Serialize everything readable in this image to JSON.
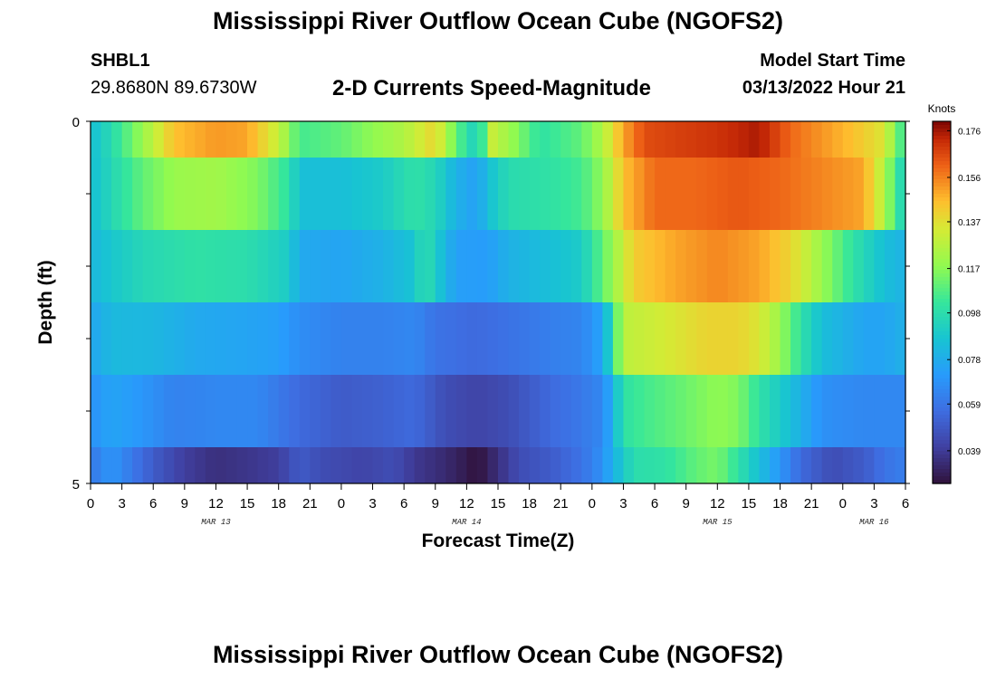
{
  "header": {
    "title": "Mississippi River Outflow Ocean Cube (NGOFS2)",
    "station_id": "SHBL1",
    "station_location": "29.8680N  89.6730W",
    "subtitle": "2-D Currents Speed-Magnitude",
    "start_label": "Model Start Time",
    "start_value": "03/13/2022 Hour 21"
  },
  "footer": {
    "title": "Mississippi River Outflow Ocean Cube (NGOFS2)"
  },
  "chart_data": {
    "type": "heatmap",
    "title": "2-D Currents Speed-Magnitude",
    "xlabel": "Forecast Time(Z)",
    "ylabel": "Depth (ft)",
    "units": "Knots",
    "ylim": [
      0,
      5
    ],
    "y_tick_labels": [
      "0",
      "5"
    ],
    "x_start_hour": 0,
    "x_end_hour": 78,
    "x_tick_hours": [
      0,
      3,
      6,
      9,
      12,
      15,
      18,
      21,
      24,
      27,
      30,
      33,
      36,
      39,
      42,
      45,
      48,
      51,
      54,
      57,
      60,
      63,
      66,
      69,
      72,
      75,
      78
    ],
    "x_tick_labels": [
      "0",
      "3",
      "6",
      "9",
      "12",
      "15",
      "18",
      "21",
      "0",
      "3",
      "6",
      "9",
      "12",
      "15",
      "18",
      "21",
      "0",
      "3",
      "6",
      "9",
      "12",
      "15",
      "18",
      "21",
      "0",
      "3",
      "6"
    ],
    "date_labels": [
      {
        "text": "MAR 13",
        "hour": 12
      },
      {
        "text": "MAR 14",
        "hour": 36
      },
      {
        "text": "MAR 15",
        "hour": 60
      },
      {
        "text": "MAR 16",
        "hour": 75
      }
    ],
    "colorbar_ticks": [
      0.176,
      0.156,
      0.137,
      0.117,
      0.098,
      0.078,
      0.059,
      0.039
    ],
    "colorbar_tick_labels": [
      "0.176",
      "0.156",
      "0.137",
      "0.117",
      "0.098",
      "0.078",
      "0.059",
      "0.039"
    ],
    "color_min": 0.025,
    "color_max": 0.18,
    "layers": [
      {
        "top": 0.0,
        "bottom": 0.5,
        "keys": [
          [
            0,
            0.085
          ],
          [
            2,
            0.097
          ],
          [
            5,
            0.12
          ],
          [
            8,
            0.145
          ],
          [
            12,
            0.152
          ],
          [
            15,
            0.15
          ],
          [
            18,
            0.13
          ],
          [
            20,
            0.105
          ],
          [
            24,
            0.11
          ],
          [
            27,
            0.118
          ],
          [
            30,
            0.125
          ],
          [
            33,
            0.14
          ],
          [
            35,
            0.11
          ],
          [
            37,
            0.09
          ],
          [
            38.5,
            0.13
          ],
          [
            41,
            0.115
          ],
          [
            43,
            0.1
          ],
          [
            47,
            0.11
          ],
          [
            49,
            0.125
          ],
          [
            51,
            0.15
          ],
          [
            53,
            0.165
          ],
          [
            57,
            0.168
          ],
          [
            60,
            0.17
          ],
          [
            64,
            0.175
          ],
          [
            67,
            0.16
          ],
          [
            73,
            0.145
          ],
          [
            76,
            0.135
          ],
          [
            77,
            0.115
          ],
          [
            78,
            0.1
          ]
        ]
      },
      {
        "top": 0.5,
        "bottom": 1.5,
        "keys": [
          [
            0,
            0.085
          ],
          [
            2,
            0.095
          ],
          [
            5,
            0.11
          ],
          [
            8,
            0.12
          ],
          [
            12,
            0.122
          ],
          [
            16,
            0.115
          ],
          [
            19,
            0.1
          ],
          [
            20,
            0.085
          ],
          [
            24,
            0.085
          ],
          [
            28,
            0.09
          ],
          [
            31,
            0.1
          ],
          [
            33,
            0.095
          ],
          [
            35,
            0.08
          ],
          [
            37,
            0.073
          ],
          [
            38,
            0.085
          ],
          [
            40,
            0.097
          ],
          [
            44,
            0.1
          ],
          [
            47,
            0.105
          ],
          [
            49,
            0.118
          ],
          [
            51,
            0.145
          ],
          [
            54,
            0.16
          ],
          [
            58,
            0.16
          ],
          [
            62,
            0.163
          ],
          [
            66,
            0.16
          ],
          [
            70,
            0.155
          ],
          [
            74,
            0.15
          ],
          [
            76,
            0.125
          ],
          [
            77,
            0.105
          ],
          [
            78,
            0.09
          ]
        ]
      },
      {
        "top": 1.5,
        "bottom": 2.5,
        "keys": [
          [
            0,
            0.082
          ],
          [
            2,
            0.088
          ],
          [
            5,
            0.095
          ],
          [
            10,
            0.1
          ],
          [
            15,
            0.098
          ],
          [
            19,
            0.09
          ],
          [
            20,
            0.077
          ],
          [
            24,
            0.075
          ],
          [
            28,
            0.08
          ],
          [
            31,
            0.087
          ],
          [
            32,
            0.1
          ],
          [
            33,
            0.09
          ],
          [
            35,
            0.073
          ],
          [
            38,
            0.072
          ],
          [
            40,
            0.08
          ],
          [
            44,
            0.085
          ],
          [
            47,
            0.09
          ],
          [
            48,
            0.1
          ],
          [
            50,
            0.12
          ],
          [
            52,
            0.142
          ],
          [
            56,
            0.15
          ],
          [
            60,
            0.155
          ],
          [
            64,
            0.15
          ],
          [
            67,
            0.14
          ],
          [
            70,
            0.12
          ],
          [
            73,
            0.1
          ],
          [
            76,
            0.085
          ],
          [
            78,
            0.08
          ]
        ]
      },
      {
        "top": 2.5,
        "bottom": 3.5,
        "keys": [
          [
            0,
            0.075
          ],
          [
            2,
            0.083
          ],
          [
            6,
            0.082
          ],
          [
            10,
            0.077
          ],
          [
            15,
            0.075
          ],
          [
            18,
            0.073
          ],
          [
            20,
            0.067
          ],
          [
            24,
            0.063
          ],
          [
            28,
            0.063
          ],
          [
            31,
            0.065
          ],
          [
            33,
            0.058
          ],
          [
            37,
            0.055
          ],
          [
            40,
            0.058
          ],
          [
            44,
            0.062
          ],
          [
            47,
            0.064
          ],
          [
            49,
            0.075
          ],
          [
            50,
            0.1
          ],
          [
            51,
            0.128
          ],
          [
            54,
            0.132
          ],
          [
            59,
            0.14
          ],
          [
            62,
            0.14
          ],
          [
            64,
            0.135
          ],
          [
            66,
            0.12
          ],
          [
            68,
            0.1
          ],
          [
            70,
            0.085
          ],
          [
            74,
            0.075
          ],
          [
            76,
            0.075
          ],
          [
            78,
            0.08
          ]
        ]
      },
      {
        "top": 3.5,
        "bottom": 4.5,
        "keys": [
          [
            0,
            0.068
          ],
          [
            2,
            0.075
          ],
          [
            5,
            0.07
          ],
          [
            8,
            0.063
          ],
          [
            12,
            0.065
          ],
          [
            16,
            0.065
          ],
          [
            20,
            0.055
          ],
          [
            24,
            0.05
          ],
          [
            28,
            0.052
          ],
          [
            31,
            0.055
          ],
          [
            34,
            0.045
          ],
          [
            37,
            0.042
          ],
          [
            40,
            0.045
          ],
          [
            44,
            0.055
          ],
          [
            47,
            0.06
          ],
          [
            49,
            0.065
          ],
          [
            50,
            0.08
          ],
          [
            51,
            0.1
          ],
          [
            53,
            0.105
          ],
          [
            56,
            0.11
          ],
          [
            60,
            0.118
          ],
          [
            62,
            0.115
          ],
          [
            64,
            0.1
          ],
          [
            67,
            0.085
          ],
          [
            70,
            0.068
          ],
          [
            74,
            0.065
          ],
          [
            78,
            0.065
          ]
        ]
      },
      {
        "top": 4.5,
        "bottom": 5.0,
        "keys": [
          [
            0,
            0.06
          ],
          [
            2,
            0.07
          ],
          [
            4,
            0.06
          ],
          [
            6,
            0.05
          ],
          [
            9,
            0.04
          ],
          [
            12,
            0.035
          ],
          [
            15,
            0.037
          ],
          [
            18,
            0.04
          ],
          [
            20,
            0.05
          ],
          [
            22,
            0.045
          ],
          [
            26,
            0.042
          ],
          [
            29,
            0.045
          ],
          [
            31,
            0.038
          ],
          [
            34,
            0.033
          ],
          [
            36,
            0.028
          ],
          [
            37,
            0.025
          ],
          [
            38,
            0.03
          ],
          [
            41,
            0.045
          ],
          [
            44,
            0.05
          ],
          [
            47,
            0.058
          ],
          [
            49,
            0.068
          ],
          [
            50,
            0.08
          ],
          [
            52,
            0.098
          ],
          [
            55,
            0.1
          ],
          [
            58,
            0.11
          ],
          [
            60,
            0.114
          ],
          [
            62,
            0.1
          ],
          [
            64,
            0.085
          ],
          [
            66,
            0.07
          ],
          [
            68,
            0.055
          ],
          [
            71,
            0.045
          ],
          [
            74,
            0.05
          ],
          [
            76,
            0.058
          ],
          [
            78,
            0.062
          ]
        ]
      }
    ]
  }
}
